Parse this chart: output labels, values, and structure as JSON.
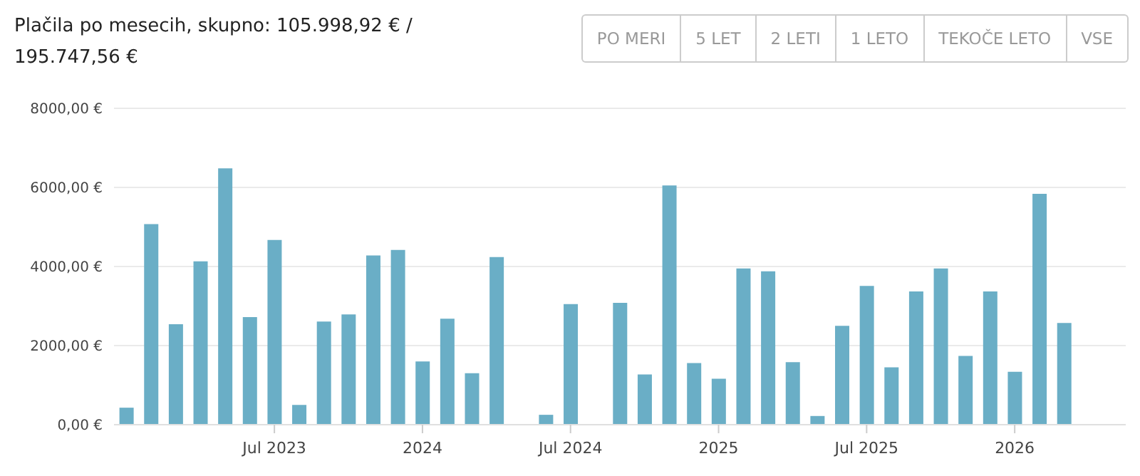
{
  "chart_data": {
    "type": "bar",
    "title": "Plačila po mesecih, skupno: 105.998,92 € / 195.747,56 €",
    "annotations": [
      "PO MERI",
      "5 LET",
      "2 LETI",
      "1 LETO",
      "TEKOČE LETO",
      "VSE"
    ],
    "categories": [
      null,
      null,
      null,
      null,
      null,
      null,
      "Jul 2023",
      null,
      null,
      null,
      null,
      null,
      "2024",
      null,
      null,
      null,
      null,
      null,
      "Jul 2024",
      null,
      null,
      null,
      null,
      null,
      "2025",
      null,
      null,
      null,
      null,
      null,
      "Jul 2025",
      null,
      null,
      null,
      null,
      null,
      "2026",
      null,
      null,
      null,
      null
    ],
    "values": [
      430,
      5070,
      2540,
      4130,
      6480,
      2720,
      4670,
      500,
      2610,
      2790,
      4280,
      4420,
      1600,
      2680,
      1300,
      4240,
      0,
      250,
      3050,
      0,
      3080,
      1270,
      6050,
      1560,
      1160,
      3950,
      3880,
      1580,
      220,
      2500,
      3510,
      1450,
      3370,
      3950,
      1740,
      3370,
      1340,
      5840,
      2570,
      null,
      null
    ],
    "color": "#6aaec6",
    "ylim": [
      0,
      8000
    ],
    "yticks": [
      {
        "value": 0,
        "label": "0,00 €"
      },
      {
        "value": 2000,
        "label": "2000,00 €"
      },
      {
        "value": 4000,
        "label": "4000,00 €"
      },
      {
        "value": 6000,
        "label": "6000,00 €"
      },
      {
        "value": 8000,
        "label": "8000,00 €"
      }
    ],
    "grid": "y"
  }
}
